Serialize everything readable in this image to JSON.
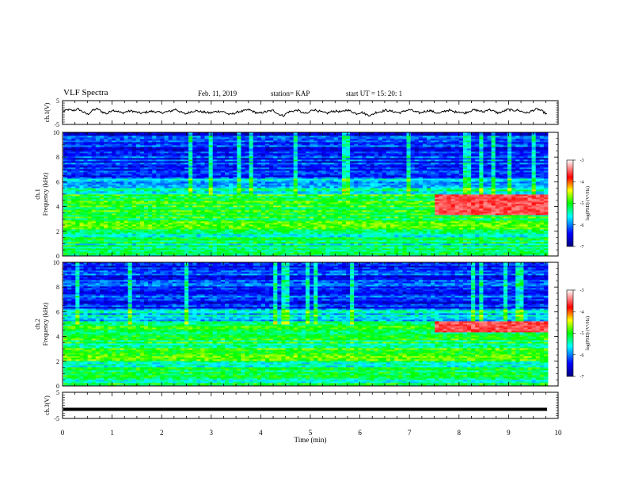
{
  "header": {
    "title": "VLF Spectra",
    "date": "Feb. 11, 2019",
    "station": "station= KAP",
    "start": "start  UT =   15: 20: 1"
  },
  "colors": {
    "background": "#ffffff",
    "axis": "#000000",
    "spectrogram_low": "#00007f",
    "spectrogram_high": "#ff0000"
  },
  "chart_data": [
    {
      "type": "line",
      "panel": "ch1-waveform",
      "ylabel": "ch.1(V)",
      "ylim": [
        -5,
        5
      ],
      "yticks": [
        "5",
        "-5"
      ],
      "xlim": [
        0,
        10
      ],
      "series": [
        {
          "values": [
            0.5,
            1.2,
            0.8,
            1.5,
            0.3,
            -0.8,
            0.9,
            1.6,
            0.2,
            -0.5,
            1.1,
            0.6,
            -0.2,
            0.4,
            0.7,
            0.1,
            -0.3,
            0.2,
            0.5,
            0.3,
            -0.1,
            0.2,
            0.6,
            1.4,
            0.2,
            -0.6,
            0.3,
            0.8,
            0.4,
            0.1,
            -0.2,
            0.3,
            0.6,
            0.2,
            -0.9,
            -0.3,
            0.4,
            0.7,
            1.2,
            0.3,
            -0.4,
            0.2,
            0.5,
            0.9,
            -0.6,
            -1.4,
            0.2,
            0.6,
            1.0,
            -0.2,
            -0.4,
            1.3,
            0.8,
            0.1,
            -0.3,
            0.5,
            0.6,
            0.2,
            1.2,
            0.4,
            -0.5,
            0.2,
            -0.8,
            -1.2,
            0.1,
            0.4,
            1.0,
            0.6,
            0.2,
            -0.1,
            0.8,
            1.2,
            0.3,
            -0.2,
            0.5,
            0.9,
            0.1,
            -0.4,
            0.6,
            1.0,
            0.2,
            0.4,
            -0.3,
            0.5,
            1.1,
            0.8,
            0.2,
            1.4,
            0.6,
            -0.2,
            0.4,
            1.3,
            0.9,
            1.0,
            0.3,
            -0.2,
            0.8,
            1.5,
            0.6,
            -0.8
          ]
        }
      ]
    },
    {
      "type": "heatmap",
      "panel": "ch1-spectrogram",
      "ylabel": "ch.1\nFrequency (kHz)",
      "ylim": [
        0,
        10
      ],
      "yticks": [
        "0",
        "2",
        "4",
        "6",
        "8",
        "10"
      ],
      "xlim": [
        0,
        10
      ],
      "colorbar": {
        "label": "log(PSD) (V²/Hz)",
        "range": [
          -7,
          -3
        ],
        "ticks": [
          "-3",
          "-4",
          "-5",
          "-6",
          "-7"
        ]
      }
    },
    {
      "type": "heatmap",
      "panel": "ch2-spectrogram",
      "ylabel": "ch.2\nFrequency (kHz)",
      "ylim": [
        0,
        10
      ],
      "yticks": [
        "0",
        "2",
        "4",
        "6",
        "8",
        "10"
      ],
      "xlim": [
        0,
        10
      ],
      "colorbar": {
        "label": "log(PSD) (V²/Hz)",
        "range": [
          -7,
          -3
        ],
        "ticks": [
          "-3",
          "-4",
          "-5",
          "-6",
          "-7"
        ]
      }
    },
    {
      "type": "line",
      "panel": "ch3-waveform",
      "ylabel": "ch.3(V)",
      "ylim": [
        -5,
        5
      ],
      "yticks": [
        "5",
        "-5"
      ],
      "xlim": [
        0,
        10
      ],
      "series": [
        {
          "values": [
            -1.5,
            -1.5
          ]
        }
      ]
    }
  ],
  "xaxis": {
    "label": "Time  (min)",
    "ticks": [
      "0",
      "1",
      "2",
      "3",
      "4",
      "5",
      "6",
      "7",
      "8",
      "9",
      "10"
    ],
    "range": [
      0,
      10
    ]
  }
}
